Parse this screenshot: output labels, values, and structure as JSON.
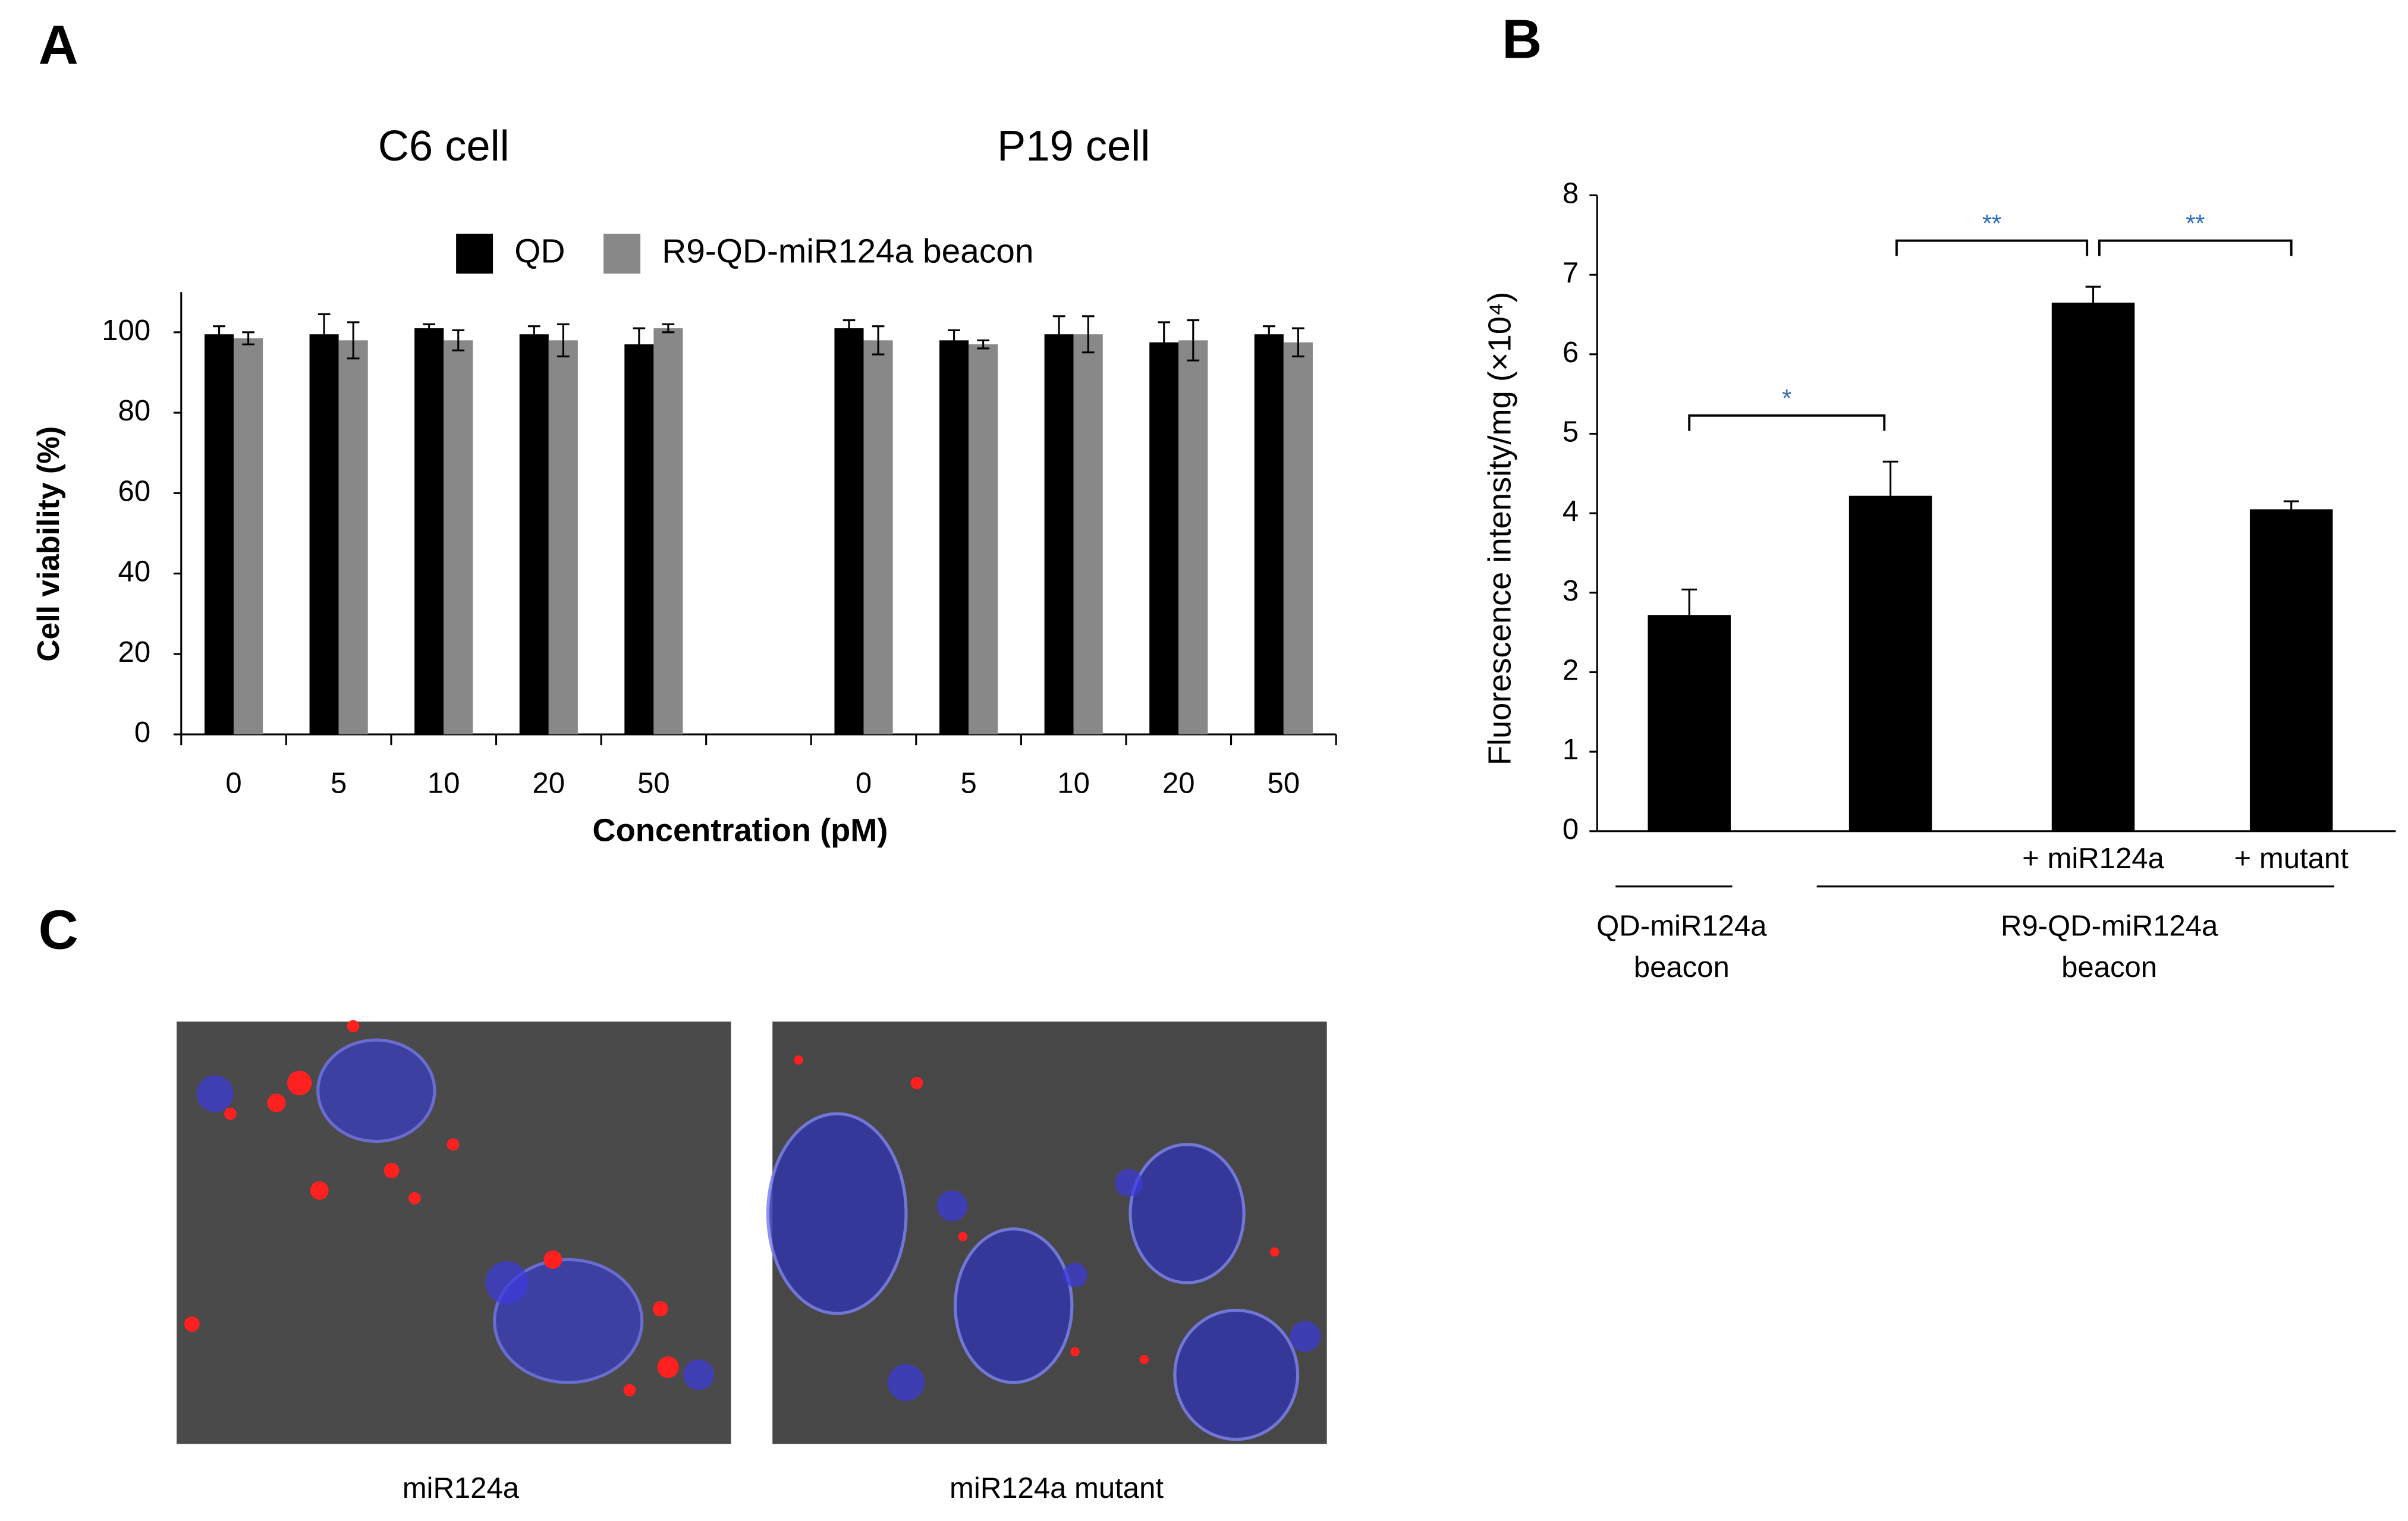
{
  "panels": {
    "labels": [
      "A",
      "B",
      "C"
    ]
  },
  "chart_data": [
    {
      "type": "bar",
      "group_labels": [
        "C6 cell",
        "P19 cell"
      ],
      "categories": [
        "0",
        "5",
        "10",
        "20",
        "50",
        null,
        "0",
        "5",
        "10",
        "20",
        "50"
      ],
      "series": [
        {
          "name": "QD",
          "color": "#000000",
          "values": [
            99.5,
            99.5,
            101,
            99.5,
            97,
            null,
            101,
            98,
            99.5,
            97.5,
            99.5
          ],
          "errors": [
            2,
            5,
            1,
            2,
            4,
            null,
            2,
            2.5,
            4.5,
            5,
            2
          ]
        },
        {
          "name": "R9-QD-miR124a beacon",
          "color": "#888888",
          "values": [
            98.5,
            98,
            98,
            98,
            101,
            null,
            98,
            97,
            99.5,
            98,
            97.5
          ],
          "errors": [
            1.5,
            4.5,
            2.5,
            4,
            1,
            null,
            3.5,
            1,
            4.5,
            5,
            3.5
          ]
        }
      ],
      "ylim": [
        0,
        110
      ],
      "yticks": [
        0,
        20,
        40,
        60,
        80,
        100
      ],
      "ylabel": "Cell viability (%)",
      "xlabel": "Concentration (pM)",
      "legend": "top"
    },
    {
      "type": "bar",
      "categories": [
        null,
        null,
        "+ miR124a",
        "+ mutant"
      ],
      "values": [
        2.72,
        4.22,
        6.65,
        4.05
      ],
      "errors": [
        0.32,
        0.43,
        0.2,
        0.1
      ],
      "color": "#000000",
      "ylim": [
        0,
        8
      ],
      "yticks": [
        0,
        1,
        2,
        3,
        4,
        5,
        6,
        7,
        8
      ],
      "ylabel": "Fluorescence intensity/mg (×10⁴)",
      "group_labels": [
        [
          "QD-miR124a",
          "beacon"
        ],
        [
          "R9-QD-miR124a",
          "beacon"
        ]
      ],
      "annotations": [
        "*",
        "**",
        "**"
      ],
      "annotation_color": "#2e6db4"
    }
  ],
  "images": [
    {
      "caption": "miR124a"
    },
    {
      "caption": "miR124a mutant"
    }
  ]
}
